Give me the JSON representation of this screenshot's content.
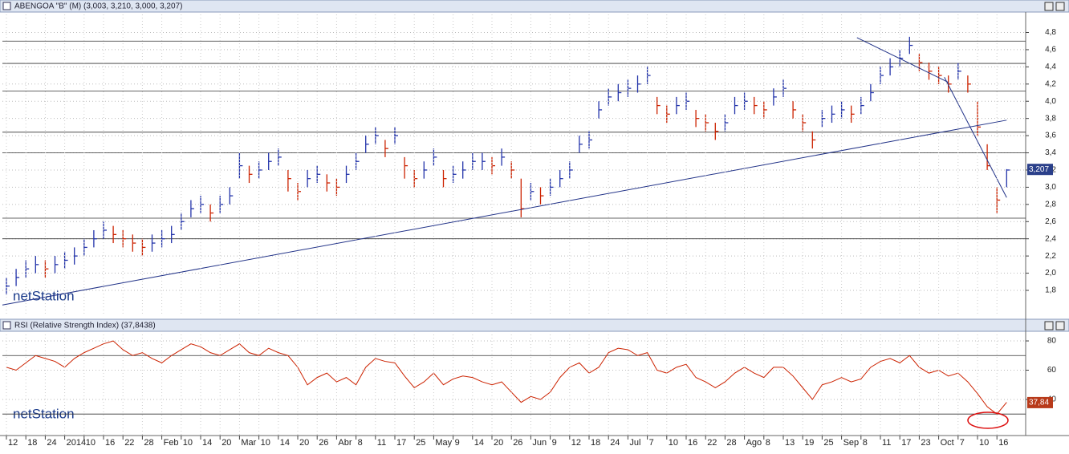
{
  "chart_data": [
    {
      "type": "ohlc",
      "title": "ABENGOA \"B\" (M) (3,003, 3,210, 3,000, 3,207)",
      "logo": "netStation",
      "categories": [
        "12",
        null,
        "18",
        null,
        "24",
        null,
        "2014",
        null,
        "10",
        null,
        "16",
        null,
        "22",
        null,
        "28",
        null,
        "Feb",
        null,
        "10",
        null,
        "14",
        null,
        "20",
        null,
        "Mar",
        null,
        "10",
        null,
        "14",
        null,
        "20",
        null,
        "26",
        null,
        "Abr",
        null,
        "8",
        null,
        "11",
        null,
        "17",
        null,
        "25",
        null,
        "May",
        null,
        "9",
        null,
        "14",
        null,
        "20",
        null,
        "26",
        null,
        "Jun",
        null,
        "9",
        null,
        "12",
        null,
        "18",
        null,
        "24",
        null,
        "Jul",
        null,
        "7",
        null,
        "10",
        null,
        "16",
        null,
        "22",
        null,
        "28",
        null,
        "Ago",
        null,
        "8",
        null,
        "13",
        null,
        "19",
        null,
        "25",
        null,
        "Sep",
        null,
        "8",
        null,
        "11",
        null,
        "17",
        null,
        "23",
        null,
        "Oct",
        null,
        "7",
        null,
        "10",
        null,
        "16",
        null
      ],
      "close": [
        1.85,
        1.95,
        2.05,
        2.1,
        2.05,
        2.1,
        2.15,
        2.2,
        2.3,
        2.4,
        2.5,
        2.45,
        2.4,
        2.35,
        2.3,
        2.35,
        2.4,
        2.45,
        2.6,
        2.75,
        2.8,
        2.7,
        2.8,
        2.9,
        3.25,
        3.15,
        3.2,
        3.3,
        3.35,
        3.1,
        2.95,
        3.1,
        3.15,
        3.05,
        3.0,
        3.15,
        3.3,
        3.5,
        3.6,
        3.45,
        3.6,
        3.25,
        3.1,
        3.2,
        3.35,
        3.1,
        3.15,
        3.2,
        3.3,
        3.3,
        3.25,
        3.35,
        3.2,
        2.75,
        2.95,
        2.9,
        3.0,
        3.1,
        3.2,
        3.5,
        3.55,
        3.9,
        4.05,
        4.1,
        4.15,
        4.2,
        4.3,
        3.95,
        3.85,
        3.95,
        4.0,
        3.8,
        3.75,
        3.65,
        3.75,
        3.95,
        4.0,
        3.95,
        3.9,
        4.05,
        4.15,
        3.9,
        3.75,
        3.55,
        3.8,
        3.85,
        3.9,
        3.85,
        3.95,
        4.1,
        4.3,
        4.4,
        4.5,
        4.65,
        4.45,
        4.35,
        4.3,
        4.2,
        4.35,
        4.2,
        3.7,
        3.25,
        2.85,
        3.2
      ],
      "high": [
        1.95,
        2.05,
        2.15,
        2.2,
        2.15,
        2.2,
        2.25,
        2.3,
        2.4,
        2.5,
        2.6,
        2.55,
        2.5,
        2.45,
        2.4,
        2.45,
        2.5,
        2.55,
        2.7,
        2.85,
        2.9,
        2.8,
        2.9,
        3.0,
        3.4,
        3.25,
        3.3,
        3.4,
        3.45,
        3.2,
        3.05,
        3.2,
        3.25,
        3.15,
        3.1,
        3.25,
        3.4,
        3.6,
        3.7,
        3.55,
        3.7,
        3.35,
        3.2,
        3.3,
        3.45,
        3.2,
        3.25,
        3.3,
        3.4,
        3.4,
        3.35,
        3.45,
        3.3,
        3.1,
        3.05,
        3.0,
        3.1,
        3.2,
        3.3,
        3.6,
        3.65,
        4.0,
        4.15,
        4.2,
        4.25,
        4.3,
        4.4,
        4.05,
        3.95,
        4.05,
        4.1,
        3.9,
        3.85,
        3.75,
        3.85,
        4.05,
        4.1,
        4.05,
        4.0,
        4.15,
        4.25,
        4.0,
        3.85,
        3.65,
        3.9,
        3.95,
        4.0,
        3.95,
        4.05,
        4.2,
        4.4,
        4.5,
        4.6,
        4.75,
        4.55,
        4.45,
        4.4,
        4.3,
        4.45,
        4.3,
        4.0,
        3.5,
        3.0,
        3.21
      ],
      "low": [
        1.75,
        1.85,
        1.95,
        2.0,
        1.95,
        2.0,
        2.05,
        2.1,
        2.2,
        2.3,
        2.4,
        2.35,
        2.3,
        2.25,
        2.2,
        2.25,
        2.3,
        2.35,
        2.5,
        2.65,
        2.7,
        2.6,
        2.7,
        2.8,
        3.1,
        3.05,
        3.1,
        3.2,
        3.25,
        2.95,
        2.85,
        3.0,
        3.05,
        2.95,
        2.9,
        3.05,
        3.2,
        3.4,
        3.5,
        3.35,
        3.5,
        3.1,
        3.0,
        3.1,
        3.25,
        3.0,
        3.05,
        3.1,
        3.2,
        3.2,
        3.15,
        3.25,
        3.1,
        2.65,
        2.85,
        2.8,
        2.9,
        3.0,
        3.1,
        3.4,
        3.45,
        3.8,
        3.95,
        4.0,
        4.05,
        4.1,
        4.2,
        3.85,
        3.75,
        3.85,
        3.9,
        3.7,
        3.65,
        3.55,
        3.65,
        3.85,
        3.9,
        3.85,
        3.8,
        3.95,
        4.05,
        3.8,
        3.65,
        3.45,
        3.7,
        3.75,
        3.8,
        3.75,
        3.85,
        4.0,
        4.2,
        4.3,
        4.4,
        4.55,
        4.35,
        4.25,
        4.2,
        4.1,
        4.25,
        4.1,
        3.6,
        3.2,
        2.7,
        3.0
      ],
      "color": "#2233aa",
      "down_color": "#cc2200",
      "ylim": [
        1.52,
        5.01
      ],
      "yticks": [
        {
          "value": 1.8,
          "label": "1,8"
        },
        {
          "value": 2.0,
          "label": "2,0"
        },
        {
          "value": 2.2,
          "label": "2,2"
        },
        {
          "value": 2.4,
          "label": "2,4"
        },
        {
          "value": 2.6,
          "label": "2,6"
        },
        {
          "value": 2.8,
          "label": "2,8"
        },
        {
          "value": 3.0,
          "label": "3,0"
        },
        {
          "value": 3.2,
          "label": "3,2"
        },
        {
          "value": 3.4,
          "label": "3,4"
        },
        {
          "value": 3.6,
          "label": "3,6"
        },
        {
          "value": 3.8,
          "label": "3,8"
        },
        {
          "value": 4.0,
          "label": "4,0"
        },
        {
          "value": 4.2,
          "label": "4,2"
        },
        {
          "value": 4.4,
          "label": "4,4"
        },
        {
          "value": 4.6,
          "label": "4,6"
        },
        {
          "value": 4.8,
          "label": "4,8"
        }
      ],
      "levels": [
        4.7,
        4.44,
        4.12,
        3.64,
        3.4,
        2.64,
        2.4
      ],
      "trend_lines": [
        {
          "x": [
            0,
            103
          ],
          "y": [
            1.63,
            3.78
          ]
        },
        {
          "x": [
            88,
            97
          ],
          "y": [
            4.74,
            4.22
          ]
        },
        {
          "x": [
            97,
            103
          ],
          "y": [
            4.28,
            2.88
          ]
        }
      ],
      "last": {
        "value": 3.207,
        "label": "3,207"
      }
    },
    {
      "type": "line",
      "title": "RSI (Relative Strength Index) (37,8438)",
      "logo": "netStation",
      "values": [
        62,
        60,
        65,
        70,
        68,
        66,
        62,
        68,
        72,
        75,
        78,
        80,
        74,
        70,
        72,
        68,
        65,
        70,
        74,
        78,
        76,
        72,
        70,
        74,
        78,
        72,
        70,
        75,
        72,
        70,
        62,
        50,
        55,
        58,
        52,
        55,
        50,
        62,
        68,
        66,
        65,
        56,
        48,
        52,
        58,
        50,
        54,
        56,
        55,
        52,
        50,
        52,
        45,
        38,
        42,
        40,
        45,
        55,
        62,
        65,
        58,
        62,
        72,
        75,
        74,
        70,
        72,
        60,
        58,
        62,
        64,
        55,
        52,
        48,
        52,
        58,
        62,
        58,
        55,
        62,
        62,
        56,
        48,
        40,
        50,
        52,
        55,
        52,
        54,
        62,
        66,
        68,
        65,
        70,
        62,
        58,
        60,
        56,
        58,
        52,
        44,
        35,
        30,
        38
      ],
      "color": "#cc2200",
      "ylim": [
        15.3,
        86.6
      ],
      "yticks": [
        40,
        60,
        80
      ],
      "levels": [
        70,
        30
      ],
      "last": {
        "value": 37.84,
        "label": "37,84"
      }
    }
  ]
}
